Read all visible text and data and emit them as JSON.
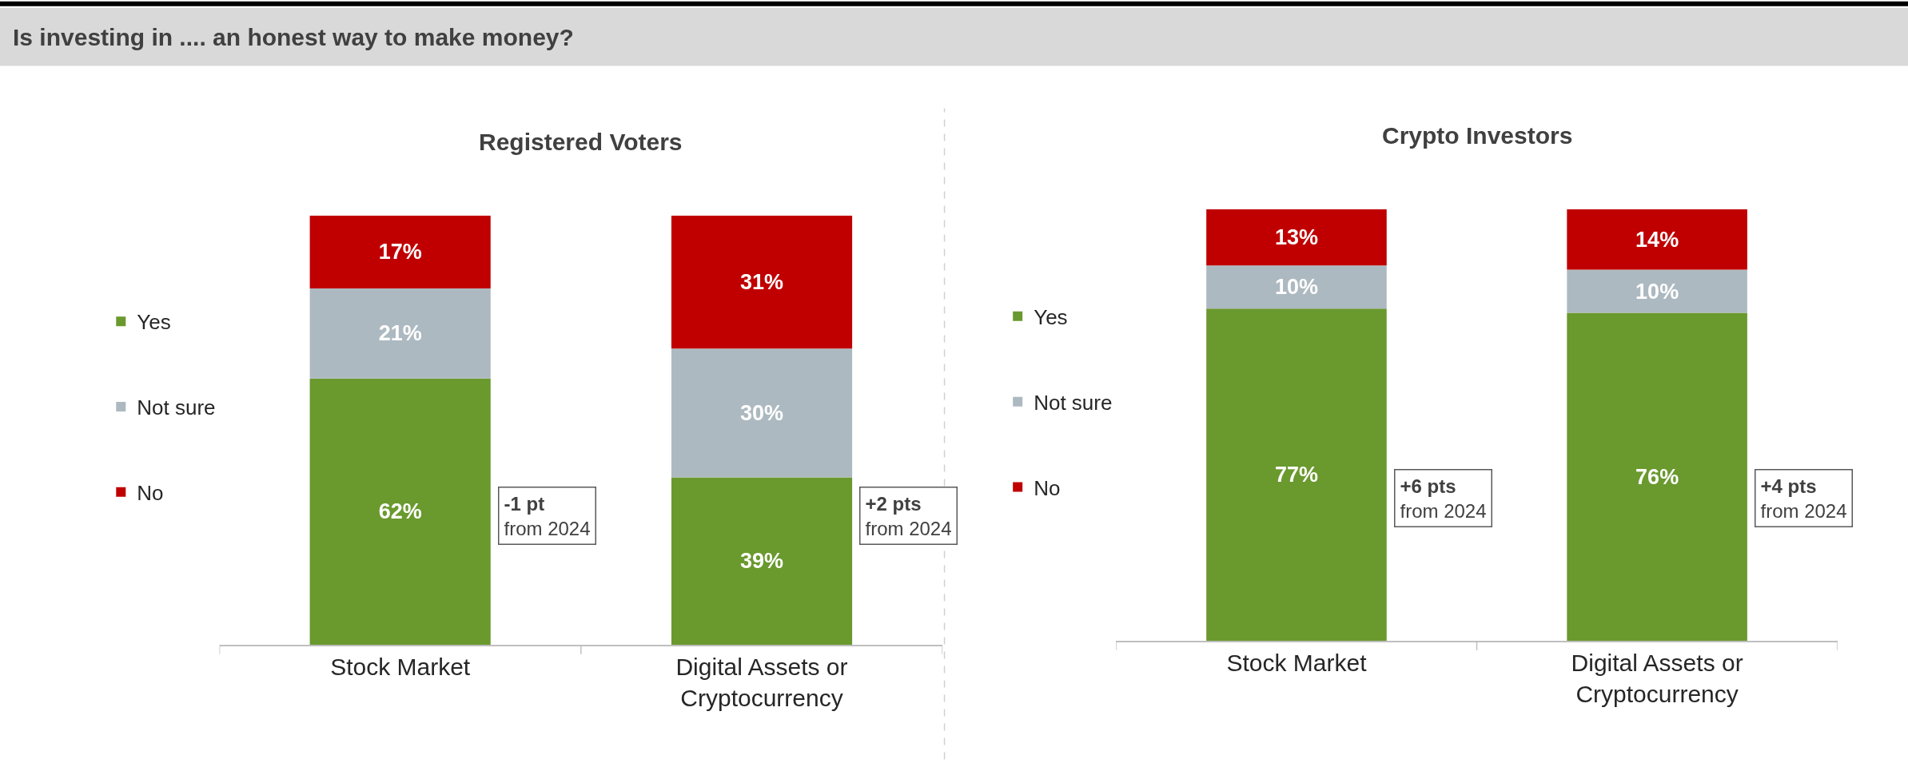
{
  "chart_data": [
    {
      "type": "other",
      "title": "Is investing in .... an honest way to make money?"
    },
    {
      "type": "bar",
      "title": "Registered Voters",
      "stacked": true,
      "legend": "left",
      "tick_labels": "x",
      "categories": [
        "Stock Market",
        "Digital Assets or Cryptocurrency"
      ],
      "series": [
        {
          "name": "Yes",
          "color": "#6a992e",
          "values": [
            62,
            39
          ],
          "value_labels": [
            "62%",
            "39%"
          ]
        },
        {
          "name": "Not sure",
          "color": "#adb9c0",
          "values": [
            21,
            30
          ],
          "value_labels": [
            "21%",
            "30%"
          ]
        },
        {
          "name": "No",
          "color": "#c00000",
          "values": [
            17,
            31
          ],
          "value_labels": [
            "17%",
            "31%"
          ]
        }
      ],
      "annotations": [
        "-1 pt\nfrom 2024",
        "+2 pts\nfrom 2024"
      ]
    },
    {
      "type": "bar",
      "title": "Crypto Investors",
      "stacked": true,
      "legend": "left",
      "tick_labels": "x",
      "categories": [
        "Stock Market",
        "Digital Assets or Cryptocurrency"
      ],
      "series": [
        {
          "name": "Yes",
          "color": "#6a992e",
          "values": [
            77,
            76
          ],
          "value_labels": [
            "77%",
            "76%"
          ]
        },
        {
          "name": "Not sure",
          "color": "#adb9c0",
          "values": [
            10,
            10
          ],
          "value_labels": [
            "10%",
            "10%"
          ]
        },
        {
          "name": "No",
          "color": "#c00000",
          "values": [
            13,
            14
          ],
          "value_labels": [
            "13%",
            "14%"
          ]
        }
      ],
      "annotations": [
        "+6 pts\nfrom 2024",
        "+4 pts\nfrom 2024"
      ]
    }
  ]
}
